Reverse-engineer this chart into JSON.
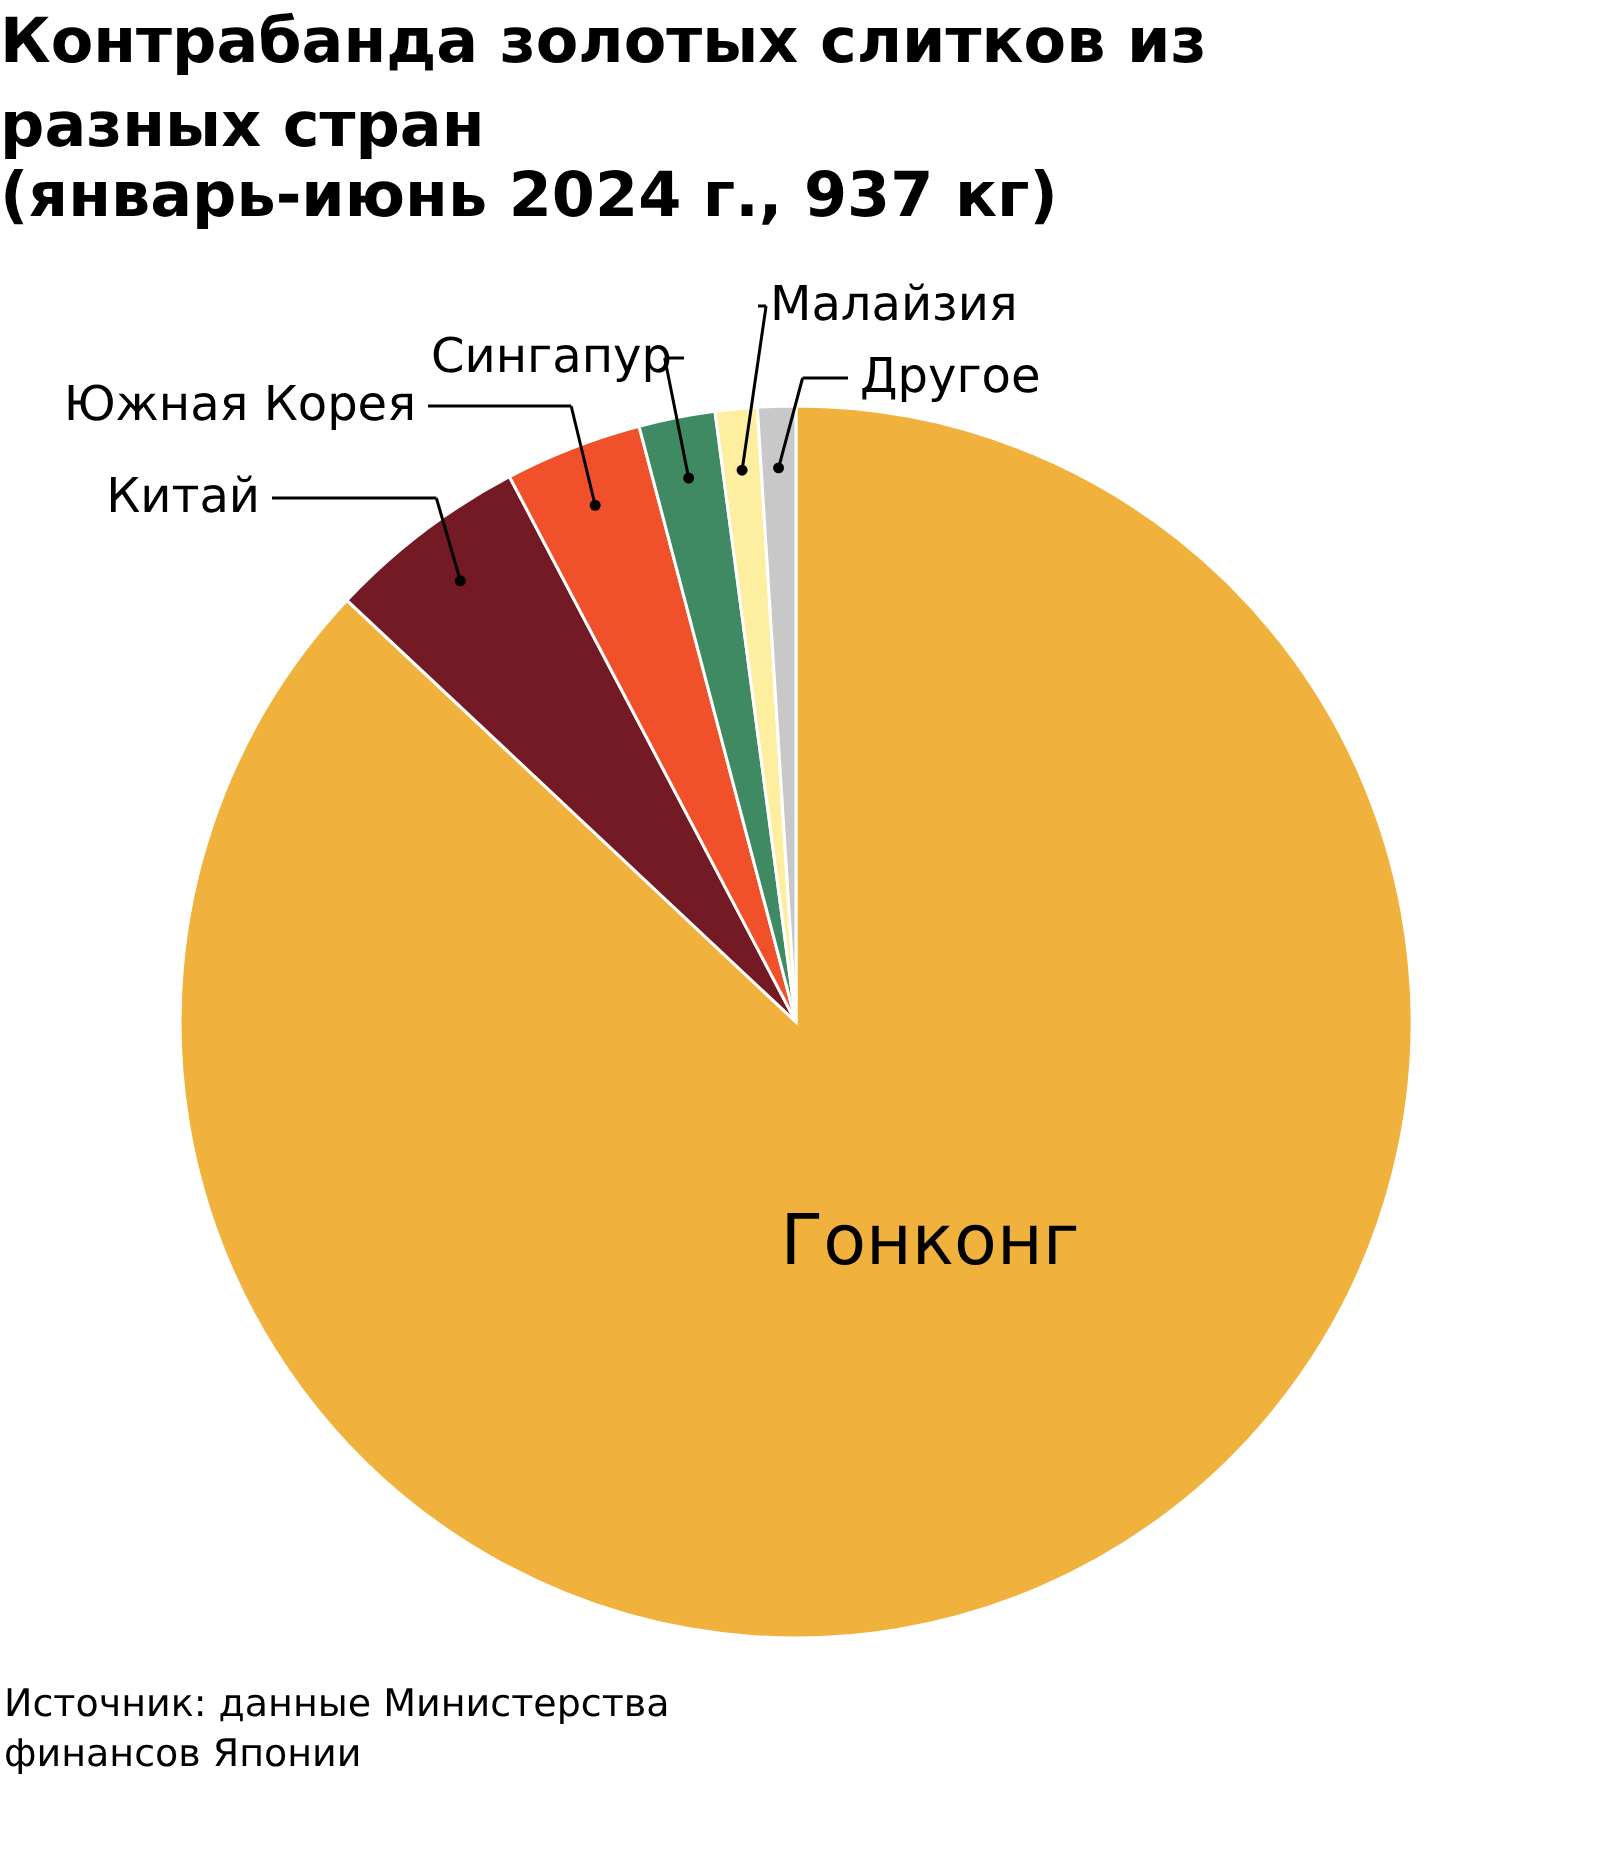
{
  "chart_data": {
    "type": "pie",
    "title": "Контрабанда золотых слитков из разных стран",
    "subtitle": "(январь-июнь 2024 г., 937 кг)",
    "categories": [
      "Гонконг",
      "Китай",
      "Южная Корея",
      "Сингапур",
      "Малайзия",
      "Другое"
    ],
    "values": [
      87.0,
      5.3,
      3.6,
      2.0,
      1.1,
      1.0
    ],
    "colors": [
      "#f0b23c",
      "#731a24",
      "#f0502a",
      "#3f8a62",
      "#fdeea0",
      "#c8c8c8"
    ],
    "annotations": [
      "Источник: данные Министерства финансов Японии"
    ]
  }
}
